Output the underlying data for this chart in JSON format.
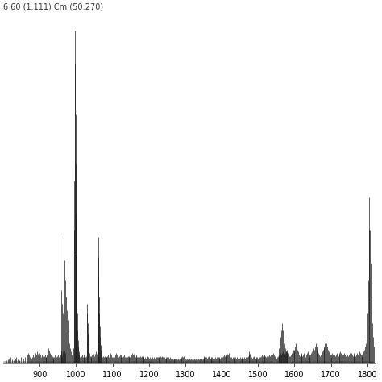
{
  "title": "6 60 (1.111) Cm (50:270)",
  "xlim": [
    800,
    1820
  ],
  "ylim": [
    0,
    1.05
  ],
  "xticks": [
    900,
    1000,
    1100,
    1200,
    1300,
    1400,
    1500,
    1600,
    1700,
    1800
  ],
  "background_color": "#ffffff",
  "line_color": "#1a1a1a",
  "peaks": [
    [
      808,
      0.01
    ],
    [
      812,
      0.012
    ],
    [
      816,
      0.015
    ],
    [
      820,
      0.018
    ],
    [
      824,
      0.012
    ],
    [
      828,
      0.01
    ],
    [
      832,
      0.015
    ],
    [
      836,
      0.018
    ],
    [
      840,
      0.012
    ],
    [
      844,
      0.01
    ],
    [
      848,
      0.018
    ],
    [
      852,
      0.022
    ],
    [
      856,
      0.015
    ],
    [
      860,
      0.02
    ],
    [
      864,
      0.018
    ],
    [
      866,
      0.025
    ],
    [
      868,
      0.03
    ],
    [
      870,
      0.025
    ],
    [
      872,
      0.018
    ],
    [
      874,
      0.022
    ],
    [
      876,
      0.018
    ],
    [
      878,
      0.015
    ],
    [
      880,
      0.02
    ],
    [
      882,
      0.025
    ],
    [
      884,
      0.018
    ],
    [
      886,
      0.022
    ],
    [
      888,
      0.03
    ],
    [
      890,
      0.025
    ],
    [
      892,
      0.035
    ],
    [
      894,
      0.028
    ],
    [
      896,
      0.022
    ],
    [
      898,
      0.025
    ],
    [
      900,
      0.03
    ],
    [
      902,
      0.025
    ],
    [
      904,
      0.02
    ],
    [
      906,
      0.025
    ],
    [
      908,
      0.022
    ],
    [
      910,
      0.018
    ],
    [
      912,
      0.022
    ],
    [
      914,
      0.025
    ],
    [
      916,
      0.02
    ],
    [
      918,
      0.018
    ],
    [
      920,
      0.025
    ],
    [
      922,
      0.035
    ],
    [
      924,
      0.045
    ],
    [
      926,
      0.038
    ],
    [
      928,
      0.03
    ],
    [
      930,
      0.025
    ],
    [
      932,
      0.02
    ],
    [
      934,
      0.022
    ],
    [
      936,
      0.018
    ],
    [
      938,
      0.015
    ],
    [
      940,
      0.02
    ],
    [
      942,
      0.025
    ],
    [
      944,
      0.02
    ],
    [
      946,
      0.018
    ],
    [
      948,
      0.022
    ],
    [
      950,
      0.025
    ],
    [
      952,
      0.02
    ],
    [
      954,
      0.018
    ],
    [
      956,
      0.025
    ],
    [
      958,
      0.03
    ],
    [
      960,
      0.025
    ],
    [
      962,
      0.022
    ],
    [
      964,
      0.035
    ],
    [
      966,
      0.045
    ],
    [
      968,
      0.038
    ],
    [
      970,
      0.032
    ],
    [
      958,
      0.038
    ],
    [
      960,
      0.22
    ],
    [
      962,
      0.18
    ],
    [
      964,
      0.15
    ],
    [
      966,
      0.38
    ],
    [
      968,
      0.31
    ],
    [
      970,
      0.25
    ],
    [
      972,
      0.2
    ],
    [
      974,
      0.16
    ],
    [
      976,
      0.13
    ],
    [
      978,
      0.1
    ],
    [
      980,
      0.08
    ],
    [
      982,
      0.06
    ],
    [
      984,
      0.045
    ],
    [
      986,
      0.035
    ],
    [
      988,
      0.025
    ],
    [
      990,
      0.035
    ],
    [
      992,
      0.045
    ],
    [
      994,
      0.4
    ],
    [
      995,
      0.55
    ],
    [
      996,
      1.0
    ],
    [
      997,
      0.9
    ],
    [
      998,
      0.75
    ],
    [
      999,
      0.6
    ],
    [
      1000,
      0.45
    ],
    [
      1001,
      0.32
    ],
    [
      1002,
      0.22
    ],
    [
      1003,
      0.15
    ],
    [
      1004,
      0.1
    ],
    [
      1005,
      0.07
    ],
    [
      1006,
      0.05
    ],
    [
      1007,
      0.035
    ],
    [
      1008,
      0.025
    ],
    [
      1010,
      0.02
    ],
    [
      1012,
      0.018
    ],
    [
      1014,
      0.022
    ],
    [
      1016,
      0.025
    ],
    [
      1018,
      0.02
    ],
    [
      1020,
      0.018
    ],
    [
      1022,
      0.025
    ],
    [
      1024,
      0.02
    ],
    [
      1026,
      0.018
    ],
    [
      1028,
      0.022
    ],
    [
      1030,
      0.18
    ],
    [
      1031,
      0.15
    ],
    [
      1032,
      0.12
    ],
    [
      1033,
      0.09
    ],
    [
      1034,
      0.06
    ],
    [
      1035,
      0.045
    ],
    [
      1036,
      0.03
    ],
    [
      1038,
      0.022
    ],
    [
      1040,
      0.018
    ],
    [
      1042,
      0.022
    ],
    [
      1044,
      0.025
    ],
    [
      1046,
      0.035
    ],
    [
      1048,
      0.028
    ],
    [
      1050,
      0.022
    ],
    [
      1052,
      0.028
    ],
    [
      1054,
      0.035
    ],
    [
      1056,
      0.028
    ],
    [
      1058,
      0.025
    ],
    [
      1060,
      0.38
    ],
    [
      1061,
      0.32
    ],
    [
      1062,
      0.26
    ],
    [
      1063,
      0.2
    ],
    [
      1064,
      0.15
    ],
    [
      1065,
      0.11
    ],
    [
      1066,
      0.08
    ],
    [
      1067,
      0.055
    ],
    [
      1068,
      0.04
    ],
    [
      1070,
      0.025
    ],
    [
      1072,
      0.02
    ],
    [
      1074,
      0.022
    ],
    [
      1076,
      0.018
    ],
    [
      1078,
      0.022
    ],
    [
      1080,
      0.025
    ],
    [
      1082,
      0.02
    ],
    [
      1084,
      0.018
    ],
    [
      1086,
      0.022
    ],
    [
      1088,
      0.025
    ],
    [
      1090,
      0.02
    ],
    [
      1092,
      0.025
    ],
    [
      1094,
      0.03
    ],
    [
      1096,
      0.025
    ],
    [
      1098,
      0.02
    ],
    [
      1100,
      0.018
    ],
    [
      1102,
      0.022
    ],
    [
      1104,
      0.025
    ],
    [
      1106,
      0.02
    ],
    [
      1108,
      0.025
    ],
    [
      1110,
      0.03
    ],
    [
      1112,
      0.025
    ],
    [
      1114,
      0.02
    ],
    [
      1116,
      0.018
    ],
    [
      1118,
      0.022
    ],
    [
      1120,
      0.025
    ],
    [
      1122,
      0.02
    ],
    [
      1124,
      0.025
    ],
    [
      1126,
      0.02
    ],
    [
      1128,
      0.018
    ],
    [
      1130,
      0.022
    ],
    [
      1132,
      0.025
    ],
    [
      1134,
      0.02
    ],
    [
      1136,
      0.018
    ],
    [
      1138,
      0.022
    ],
    [
      1140,
      0.018
    ],
    [
      1142,
      0.022
    ],
    [
      1144,
      0.018
    ],
    [
      1146,
      0.022
    ],
    [
      1148,
      0.018
    ],
    [
      1150,
      0.022
    ],
    [
      1152,
      0.025
    ],
    [
      1154,
      0.03
    ],
    [
      1156,
      0.025
    ],
    [
      1158,
      0.028
    ],
    [
      1160,
      0.025
    ],
    [
      1162,
      0.02
    ],
    [
      1164,
      0.022
    ],
    [
      1166,
      0.025
    ],
    [
      1168,
      0.02
    ],
    [
      1170,
      0.018
    ],
    [
      1172,
      0.022
    ],
    [
      1174,
      0.018
    ],
    [
      1176,
      0.022
    ],
    [
      1178,
      0.018
    ],
    [
      1180,
      0.022
    ],
    [
      1182,
      0.018
    ],
    [
      1184,
      0.022
    ],
    [
      1186,
      0.018
    ],
    [
      1188,
      0.015
    ],
    [
      1190,
      0.018
    ],
    [
      1192,
      0.015
    ],
    [
      1194,
      0.018
    ],
    [
      1196,
      0.022
    ],
    [
      1198,
      0.018
    ],
    [
      1200,
      0.015
    ],
    [
      1202,
      0.018
    ],
    [
      1204,
      0.015
    ],
    [
      1206,
      0.018
    ],
    [
      1208,
      0.015
    ],
    [
      1210,
      0.018
    ],
    [
      1212,
      0.015
    ],
    [
      1214,
      0.018
    ],
    [
      1216,
      0.015
    ],
    [
      1218,
      0.018
    ],
    [
      1220,
      0.02
    ],
    [
      1222,
      0.018
    ],
    [
      1224,
      0.02
    ],
    [
      1226,
      0.018
    ],
    [
      1228,
      0.02
    ],
    [
      1230,
      0.018
    ],
    [
      1232,
      0.022
    ],
    [
      1234,
      0.018
    ],
    [
      1236,
      0.022
    ],
    [
      1238,
      0.018
    ],
    [
      1240,
      0.015
    ],
    [
      1242,
      0.018
    ],
    [
      1244,
      0.015
    ],
    [
      1246,
      0.018
    ],
    [
      1248,
      0.015
    ],
    [
      1250,
      0.018
    ],
    [
      1252,
      0.015
    ],
    [
      1254,
      0.018
    ],
    [
      1256,
      0.015
    ],
    [
      1258,
      0.018
    ],
    [
      1260,
      0.015
    ],
    [
      1262,
      0.018
    ],
    [
      1264,
      0.015
    ],
    [
      1266,
      0.012
    ],
    [
      1268,
      0.015
    ],
    [
      1270,
      0.012
    ],
    [
      1272,
      0.015
    ],
    [
      1274,
      0.012
    ],
    [
      1276,
      0.015
    ],
    [
      1278,
      0.012
    ],
    [
      1280,
      0.015
    ],
    [
      1282,
      0.012
    ],
    [
      1284,
      0.015
    ],
    [
      1286,
      0.012
    ],
    [
      1288,
      0.015
    ],
    [
      1290,
      0.018
    ],
    [
      1292,
      0.022
    ],
    [
      1294,
      0.018
    ],
    [
      1296,
      0.022
    ],
    [
      1298,
      0.018
    ],
    [
      1300,
      0.015
    ],
    [
      1302,
      0.012
    ],
    [
      1304,
      0.015
    ],
    [
      1306,
      0.012
    ],
    [
      1308,
      0.015
    ],
    [
      1310,
      0.012
    ],
    [
      1312,
      0.015
    ],
    [
      1314,
      0.012
    ],
    [
      1316,
      0.015
    ],
    [
      1318,
      0.012
    ],
    [
      1320,
      0.015
    ],
    [
      1322,
      0.012
    ],
    [
      1324,
      0.015
    ],
    [
      1326,
      0.012
    ],
    [
      1328,
      0.015
    ],
    [
      1330,
      0.012
    ],
    [
      1332,
      0.015
    ],
    [
      1334,
      0.012
    ],
    [
      1336,
      0.015
    ],
    [
      1338,
      0.012
    ],
    [
      1340,
      0.015
    ],
    [
      1342,
      0.012
    ],
    [
      1344,
      0.015
    ],
    [
      1346,
      0.012
    ],
    [
      1348,
      0.015
    ],
    [
      1350,
      0.018
    ],
    [
      1352,
      0.022
    ],
    [
      1354,
      0.018
    ],
    [
      1356,
      0.022
    ],
    [
      1358,
      0.018
    ],
    [
      1360,
      0.015
    ],
    [
      1362,
      0.018
    ],
    [
      1364,
      0.022
    ],
    [
      1366,
      0.018
    ],
    [
      1368,
      0.015
    ],
    [
      1370,
      0.018
    ],
    [
      1372,
      0.015
    ],
    [
      1374,
      0.018
    ],
    [
      1376,
      0.015
    ],
    [
      1378,
      0.018
    ],
    [
      1380,
      0.015
    ],
    [
      1382,
      0.018
    ],
    [
      1384,
      0.015
    ],
    [
      1386,
      0.018
    ],
    [
      1388,
      0.015
    ],
    [
      1390,
      0.018
    ],
    [
      1392,
      0.015
    ],
    [
      1394,
      0.018
    ],
    [
      1396,
      0.015
    ],
    [
      1398,
      0.018
    ],
    [
      1400,
      0.022
    ],
    [
      1402,
      0.018
    ],
    [
      1404,
      0.022
    ],
    [
      1406,
      0.025
    ],
    [
      1408,
      0.022
    ],
    [
      1410,
      0.028
    ],
    [
      1412,
      0.022
    ],
    [
      1414,
      0.025
    ],
    [
      1416,
      0.028
    ],
    [
      1418,
      0.025
    ],
    [
      1420,
      0.03
    ],
    [
      1422,
      0.025
    ],
    [
      1424,
      0.02
    ],
    [
      1426,
      0.018
    ],
    [
      1428,
      0.015
    ],
    [
      1430,
      0.018
    ],
    [
      1432,
      0.015
    ],
    [
      1434,
      0.018
    ],
    [
      1436,
      0.015
    ],
    [
      1438,
      0.018
    ],
    [
      1440,
      0.015
    ],
    [
      1442,
      0.018
    ],
    [
      1444,
      0.015
    ],
    [
      1446,
      0.018
    ],
    [
      1448,
      0.015
    ],
    [
      1450,
      0.018
    ],
    [
      1452,
      0.015
    ],
    [
      1454,
      0.018
    ],
    [
      1456,
      0.015
    ],
    [
      1458,
      0.018
    ],
    [
      1460,
      0.015
    ],
    [
      1462,
      0.018
    ],
    [
      1464,
      0.015
    ],
    [
      1466,
      0.018
    ],
    [
      1468,
      0.015
    ],
    [
      1470,
      0.018
    ],
    [
      1472,
      0.022
    ],
    [
      1474,
      0.028
    ],
    [
      1476,
      0.035
    ],
    [
      1478,
      0.028
    ],
    [
      1480,
      0.022
    ],
    [
      1482,
      0.018
    ],
    [
      1484,
      0.015
    ],
    [
      1486,
      0.018
    ],
    [
      1488,
      0.022
    ],
    [
      1490,
      0.018
    ],
    [
      1492,
      0.015
    ],
    [
      1494,
      0.018
    ],
    [
      1496,
      0.015
    ],
    [
      1498,
      0.018
    ],
    [
      1500,
      0.015
    ],
    [
      1502,
      0.018
    ],
    [
      1504,
      0.015
    ],
    [
      1506,
      0.018
    ],
    [
      1508,
      0.022
    ],
    [
      1510,
      0.025
    ],
    [
      1512,
      0.022
    ],
    [
      1514,
      0.018
    ],
    [
      1516,
      0.022
    ],
    [
      1518,
      0.025
    ],
    [
      1520,
      0.022
    ],
    [
      1522,
      0.018
    ],
    [
      1524,
      0.022
    ],
    [
      1526,
      0.018
    ],
    [
      1528,
      0.022
    ],
    [
      1530,
      0.025
    ],
    [
      1532,
      0.022
    ],
    [
      1534,
      0.025
    ],
    [
      1536,
      0.028
    ],
    [
      1538,
      0.022
    ],
    [
      1540,
      0.025
    ],
    [
      1542,
      0.03
    ],
    [
      1544,
      0.025
    ],
    [
      1546,
      0.022
    ],
    [
      1548,
      0.018
    ],
    [
      1550,
      0.015
    ],
    [
      1552,
      0.018
    ],
    [
      1554,
      0.022
    ],
    [
      1556,
      0.025
    ],
    [
      1558,
      0.022
    ],
    [
      1560,
      0.025
    ],
    [
      1562,
      0.03
    ],
    [
      1564,
      0.025
    ],
    [
      1566,
      0.03
    ],
    [
      1568,
      0.035
    ],
    [
      1570,
      0.03
    ],
    [
      1572,
      0.025
    ],
    [
      1574,
      0.03
    ],
    [
      1576,
      0.035
    ],
    [
      1578,
      0.04
    ],
    [
      1580,
      0.035
    ],
    [
      1582,
      0.03
    ],
    [
      1584,
      0.025
    ],
    [
      1586,
      0.022
    ],
    [
      1558,
      0.045
    ],
    [
      1560,
      0.06
    ],
    [
      1562,
      0.08
    ],
    [
      1564,
      0.1
    ],
    [
      1566,
      0.12
    ],
    [
      1568,
      0.1
    ],
    [
      1570,
      0.08
    ],
    [
      1572,
      0.06
    ],
    [
      1574,
      0.045
    ],
    [
      1576,
      0.035
    ],
    [
      1578,
      0.025
    ],
    [
      1588,
      0.022
    ],
    [
      1590,
      0.025
    ],
    [
      1592,
      0.03
    ],
    [
      1594,
      0.035
    ],
    [
      1596,
      0.04
    ],
    [
      1598,
      0.035
    ],
    [
      1600,
      0.04
    ],
    [
      1602,
      0.05
    ],
    [
      1604,
      0.06
    ],
    [
      1606,
      0.05
    ],
    [
      1608,
      0.04
    ],
    [
      1610,
      0.035
    ],
    [
      1612,
      0.025
    ],
    [
      1614,
      0.022
    ],
    [
      1616,
      0.025
    ],
    [
      1618,
      0.03
    ],
    [
      1620,
      0.025
    ],
    [
      1622,
      0.022
    ],
    [
      1624,
      0.025
    ],
    [
      1626,
      0.03
    ],
    [
      1628,
      0.025
    ],
    [
      1630,
      0.02
    ],
    [
      1632,
      0.025
    ],
    [
      1634,
      0.03
    ],
    [
      1636,
      0.035
    ],
    [
      1638,
      0.03
    ],
    [
      1640,
      0.025
    ],
    [
      1642,
      0.022
    ],
    [
      1644,
      0.025
    ],
    [
      1646,
      0.03
    ],
    [
      1648,
      0.035
    ],
    [
      1650,
      0.04
    ],
    [
      1652,
      0.045
    ],
    [
      1654,
      0.04
    ],
    [
      1656,
      0.05
    ],
    [
      1658,
      0.06
    ],
    [
      1660,
      0.05
    ],
    [
      1662,
      0.04
    ],
    [
      1664,
      0.035
    ],
    [
      1666,
      0.03
    ],
    [
      1668,
      0.025
    ],
    [
      1670,
      0.022
    ],
    [
      1672,
      0.025
    ],
    [
      1674,
      0.03
    ],
    [
      1676,
      0.035
    ],
    [
      1678,
      0.04
    ],
    [
      1680,
      0.045
    ],
    [
      1682,
      0.05
    ],
    [
      1684,
      0.06
    ],
    [
      1686,
      0.07
    ],
    [
      1688,
      0.06
    ],
    [
      1690,
      0.05
    ],
    [
      1692,
      0.04
    ],
    [
      1694,
      0.035
    ],
    [
      1696,
      0.03
    ],
    [
      1698,
      0.025
    ],
    [
      1700,
      0.02
    ],
    [
      1702,
      0.025
    ],
    [
      1704,
      0.03
    ],
    [
      1706,
      0.025
    ],
    [
      1708,
      0.022
    ],
    [
      1710,
      0.025
    ],
    [
      1712,
      0.022
    ],
    [
      1714,
      0.025
    ],
    [
      1716,
      0.03
    ],
    [
      1718,
      0.025
    ],
    [
      1720,
      0.022
    ],
    [
      1722,
      0.025
    ],
    [
      1724,
      0.03
    ],
    [
      1726,
      0.035
    ],
    [
      1728,
      0.03
    ],
    [
      1730,
      0.025
    ],
    [
      1732,
      0.022
    ],
    [
      1734,
      0.025
    ],
    [
      1736,
      0.03
    ],
    [
      1738,
      0.025
    ],
    [
      1740,
      0.022
    ],
    [
      1742,
      0.025
    ],
    [
      1744,
      0.03
    ],
    [
      1746,
      0.025
    ],
    [
      1748,
      0.022
    ],
    [
      1750,
      0.025
    ],
    [
      1752,
      0.03
    ],
    [
      1754,
      0.035
    ],
    [
      1756,
      0.03
    ],
    [
      1758,
      0.025
    ],
    [
      1760,
      0.022
    ],
    [
      1762,
      0.025
    ],
    [
      1764,
      0.03
    ],
    [
      1766,
      0.025
    ],
    [
      1768,
      0.022
    ],
    [
      1770,
      0.025
    ],
    [
      1772,
      0.03
    ],
    [
      1774,
      0.025
    ],
    [
      1776,
      0.03
    ],
    [
      1778,
      0.035
    ],
    [
      1780,
      0.03
    ],
    [
      1782,
      0.025
    ],
    [
      1784,
      0.022
    ],
    [
      1786,
      0.025
    ],
    [
      1788,
      0.03
    ],
    [
      1790,
      0.035
    ],
    [
      1792,
      0.04
    ],
    [
      1794,
      0.05
    ],
    [
      1796,
      0.06
    ],
    [
      1798,
      0.08
    ],
    [
      1800,
      0.15
    ],
    [
      1802,
      0.25
    ],
    [
      1804,
      0.4
    ],
    [
      1806,
      0.5
    ],
    [
      1808,
      0.4
    ],
    [
      1810,
      0.3
    ],
    [
      1812,
      0.2
    ],
    [
      1814,
      0.12
    ],
    [
      1816,
      0.08
    ],
    [
      1818,
      0.05
    ]
  ]
}
